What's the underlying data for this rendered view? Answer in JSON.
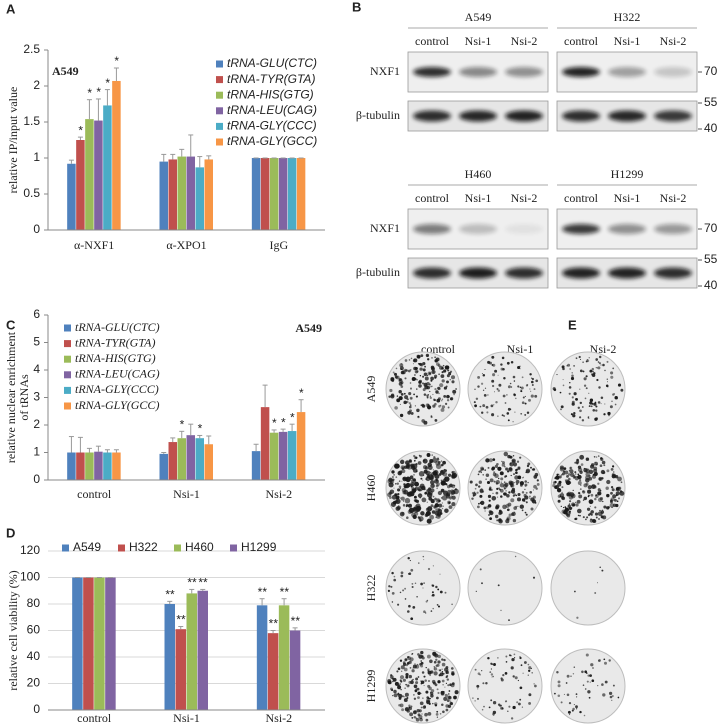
{
  "panels": [
    "A",
    "B",
    "C",
    "D",
    "E"
  ],
  "chart_data": [
    {
      "type": "bar",
      "annotation": "A549",
      "ylabel": [
        "relative IP/input value"
      ],
      "categories": [
        "α-NXF1",
        "α-XPO1",
        "IgG"
      ],
      "ylim": [
        0,
        2.5
      ],
      "yticks": [
        0,
        0.5,
        1,
        1.5,
        2,
        2.5
      ],
      "grid": false,
      "legend": "upper right",
      "series": [
        {
          "name": "tRNA-GLU(CTC)",
          "color": "#4f81bd",
          "values": [
            0.92,
            0.95,
            1
          ],
          "errors": [
            0.05,
            0.1,
            0
          ],
          "stars": [
            null,
            null,
            null
          ]
        },
        {
          "name": "tRNA-TYR(GTA)",
          "color": "#c0504d",
          "values": [
            1.25,
            0.98,
            1
          ],
          "errors": [
            0.04,
            0.07,
            0
          ],
          "stars": [
            "*",
            null,
            null
          ]
        },
        {
          "name": "tRNA-HIS(GTG)",
          "color": "#9bbb59",
          "values": [
            1.54,
            1.02,
            1
          ],
          "errors": [
            0.27,
            0.1,
            0
          ],
          "stars": [
            "*",
            null,
            null
          ]
        },
        {
          "name": "tRNA-LEU(CAG)",
          "color": "#8064a2",
          "values": [
            1.52,
            1.02,
            1
          ],
          "errors": [
            0.3,
            0.3,
            0
          ],
          "stars": [
            "*",
            null,
            null
          ]
        },
        {
          "name": "tRNA-GLY(CCC)",
          "color": "#4bacc6",
          "values": [
            1.73,
            0.87,
            1
          ],
          "errors": [
            0.22,
            0.15,
            0
          ],
          "stars": [
            "*",
            null,
            null
          ]
        },
        {
          "name": "tRNA-GLY(GCC)",
          "color": "#f79646",
          "values": [
            2.07,
            0.98,
            1
          ],
          "errors": [
            0.18,
            0.05,
            0
          ],
          "stars": [
            "*",
            null,
            null
          ]
        }
      ]
    },
    {
      "type": "bar",
      "annotation": "A549",
      "ylabel": [
        "relative nuclear enrichment",
        "of tRNAs"
      ],
      "categories": [
        "control",
        "Nsi-1",
        "Nsi-2"
      ],
      "ylim": [
        0,
        6
      ],
      "yticks": [
        0,
        1,
        2,
        3,
        4,
        5,
        6
      ],
      "grid": false,
      "legend": "upper left",
      "series": [
        {
          "name": "tRNA-GLU(CTC)",
          "color": "#4f81bd",
          "values": [
            1.0,
            0.95,
            1.05
          ],
          "errors": [
            0.58,
            0.05,
            0.25
          ],
          "stars": [
            null,
            null,
            null
          ]
        },
        {
          "name": "tRNA-TYR(GTA)",
          "color": "#c0504d",
          "values": [
            1.0,
            1.38,
            2.65
          ],
          "errors": [
            0.55,
            0.15,
            0.8
          ],
          "stars": [
            null,
            null,
            null
          ]
        },
        {
          "name": "tRNA-HIS(GTG)",
          "color": "#9bbb59",
          "values": [
            1.0,
            1.52,
            1.72
          ],
          "errors": [
            0.15,
            0.25,
            0.1
          ],
          "stars": [
            null,
            "*",
            "*"
          ]
        },
        {
          "name": "tRNA-LEU(CAG)",
          "color": "#8064a2",
          "values": [
            1.03,
            1.63,
            1.75
          ],
          "errors": [
            0.2,
            0.4,
            0.1
          ],
          "stars": [
            null,
            null,
            "*"
          ]
        },
        {
          "name": "tRNA-GLY(CCC)",
          "color": "#4bacc6",
          "values": [
            1.0,
            1.52,
            1.78
          ],
          "errors": [
            0.1,
            0.1,
            0.25
          ],
          "stars": [
            null,
            "*",
            "*"
          ]
        },
        {
          "name": "tRNA-GLY(GCC)",
          "color": "#f79646",
          "values": [
            1.0,
            1.3,
            2.47
          ],
          "errors": [
            0.1,
            0.3,
            0.45
          ],
          "stars": [
            null,
            null,
            "*"
          ]
        }
      ]
    },
    {
      "type": "bar",
      "ylabel": [
        "relative cell viability (%)"
      ],
      "categories": [
        "control",
        "Nsi-1",
        "Nsi-2"
      ],
      "ylim": [
        0,
        120
      ],
      "yticks": [
        0,
        20,
        40,
        60,
        80,
        100,
        120
      ],
      "grid": true,
      "legend": "top",
      "series": [
        {
          "name": "A549",
          "color": "#4f81bd",
          "values": [
            100,
            80,
            79
          ],
          "errors": [
            0,
            2,
            5
          ],
          "stars": [
            null,
            "**",
            "**"
          ]
        },
        {
          "name": "H322",
          "color": "#c0504d",
          "values": [
            100,
            61,
            58
          ],
          "errors": [
            0,
            2,
            2
          ],
          "stars": [
            null,
            "**",
            "**"
          ]
        },
        {
          "name": "H460",
          "color": "#9bbb59",
          "values": [
            100,
            88,
            79
          ],
          "errors": [
            0,
            3,
            5
          ],
          "stars": [
            null,
            "**",
            "**"
          ]
        },
        {
          "name": "H1299",
          "color": "#8064a2",
          "values": [
            100,
            90,
            60
          ],
          "errors": [
            0,
            1,
            2
          ],
          "stars": [
            null,
            "**",
            "**"
          ]
        }
      ]
    }
  ],
  "blots": [
    {
      "groups": [
        {
          "name": "A549",
          "lanes": [
            "control",
            "Nsi-1",
            "Nsi-2"
          ]
        },
        {
          "name": "H322",
          "lanes": [
            "control",
            "Nsi-1",
            "Nsi-2"
          ]
        }
      ],
      "rows": [
        "NXF1",
        "β-tubulin"
      ],
      "markers": [
        70,
        55,
        40
      ]
    },
    {
      "groups": [
        {
          "name": "H460",
          "lanes": [
            "control",
            "Nsi-1",
            "Nsi-2"
          ]
        },
        {
          "name": "H1299",
          "lanes": [
            "control",
            "Nsi-1",
            "Nsi-2"
          ]
        }
      ],
      "rows": [
        "NXF1",
        "β-tubulin"
      ],
      "markers": [
        70,
        55,
        40
      ]
    }
  ],
  "colonies": {
    "columns": [
      "control",
      "Nsi-1",
      "Nsi-2"
    ],
    "rows": [
      "A549",
      "H460",
      "H322",
      "H1299"
    ]
  }
}
